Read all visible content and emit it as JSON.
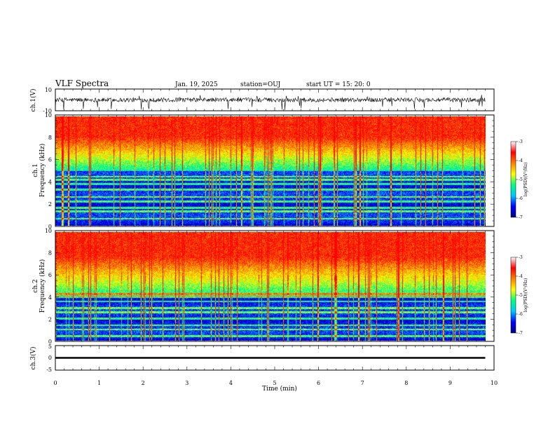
{
  "header": {
    "title": "VLF Spectra",
    "date": "Jan. 19, 2025",
    "station": "station=OUJ",
    "start": "start  UT =  15: 20: 0"
  },
  "chart_data": [
    {
      "type": "line",
      "panel": "waveform-ch1",
      "ylabel": "ch.1(V)",
      "ylim": [
        -10,
        10
      ],
      "yticks": [
        "10",
        "-10"
      ],
      "xlim": [
        0,
        10
      ],
      "baseline": 0,
      "noise_amplitude": 2,
      "spikes_down_to": -10,
      "data_end": 9.8
    },
    {
      "type": "heatmap",
      "panel": "spectrogram-ch1",
      "ylabel_line1": "ch.1",
      "ylabel_line2": "Frequency (kHz)",
      "ylim": [
        0,
        10
      ],
      "yticks": [
        "0",
        "2",
        "4",
        "6",
        "8",
        "10"
      ],
      "xlim": [
        0,
        10
      ],
      "data_end": 9.8,
      "low_band_khz": [
        0,
        5
      ],
      "narrowband_lines_khz": [
        0.6,
        1.3,
        1.6,
        2.2,
        2.6,
        3.3,
        3.8,
        4.2,
        4.5
      ],
      "colorbar": {
        "label": "log(PSD)(V²/Hz)",
        "range": [
          -7,
          -3
        ],
        "ticks": [
          "-3",
          "-4",
          "-5",
          "-6",
          "-7"
        ],
        "colors": [
          "#000080",
          "#0000ff",
          "#00c8ff",
          "#00ff80",
          "#ffff00",
          "#ff8000",
          "#ff0000",
          "#ffffff"
        ]
      }
    },
    {
      "type": "heatmap",
      "panel": "spectrogram-ch2",
      "ylabel_line1": "ch.2",
      "ylabel_line2": "Frequency (kHz)",
      "ylim": [
        0,
        10
      ],
      "yticks": [
        "0",
        "2",
        "4",
        "6",
        "8",
        "10"
      ],
      "xlim": [
        0,
        10
      ],
      "data_end": 9.8,
      "low_band_khz": [
        0,
        4
      ],
      "narrowband_lines_khz": [
        0.4,
        1.0,
        1.4,
        2.0,
        2.6,
        3.0,
        3.6,
        4.0,
        4.3
      ],
      "colorbar": {
        "label": "log(PSD)(V²/Hz)",
        "range": [
          -7,
          -3
        ],
        "ticks": [
          "-3",
          "-4",
          "-5",
          "-6",
          "-7"
        ],
        "colors": [
          "#000080",
          "#0000ff",
          "#00c8ff",
          "#00ff80",
          "#ffff00",
          "#ff8000",
          "#ff0000",
          "#ffffff"
        ]
      }
    },
    {
      "type": "line",
      "panel": "waveform-ch3",
      "ylabel": "ch.3(V)",
      "ylim": [
        -5,
        5
      ],
      "yticks": [
        "5",
        "0",
        "-5"
      ],
      "xlim": [
        0,
        10
      ],
      "level": 0,
      "data_end": 9.8,
      "xlabel": "Time (min)",
      "xticks": [
        "0",
        "1",
        "2",
        "3",
        "4",
        "5",
        "6",
        "7",
        "8",
        "9",
        "10"
      ]
    }
  ]
}
